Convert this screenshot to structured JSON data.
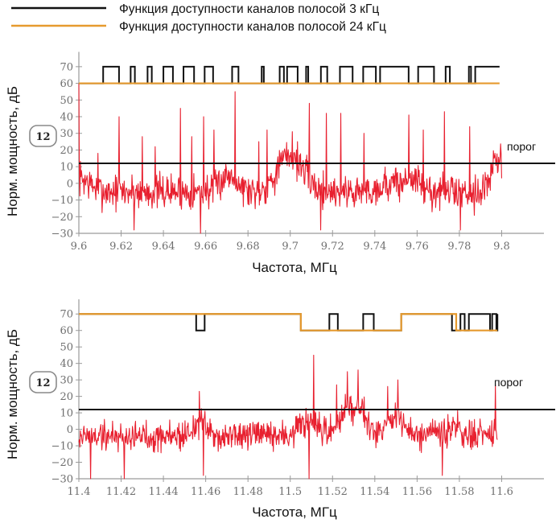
{
  "colors": {
    "noise": "#e8202f",
    "avail3": "#111111",
    "avail24": "#e69a2e",
    "threshold": "#111111",
    "axis": "#9a9a9a",
    "badge_border": "#8a8a8a"
  },
  "legend": [
    {
      "label": "Функция доступности каналов полосой 3 кГц",
      "color": "#111111"
    },
    {
      "label": "Функция доступности каналов полосой 24 кГц",
      "color": "#e69a2e"
    }
  ],
  "chart_data": [
    {
      "type": "line",
      "xlabel": "Частота, МГц",
      "ylabel": "Норм. мощность, дБ",
      "xlim": [
        9.6,
        9.82
      ],
      "ylim": [
        -30,
        75
      ],
      "xticks": [
        9.6,
        9.62,
        9.64,
        9.66,
        9.68,
        9.7,
        9.72,
        9.74,
        9.76,
        9.78,
        9.8
      ],
      "xtick_labels": [
        "9.6",
        "9.62",
        "9.64",
        "9.66",
        "9.68",
        "9.7",
        "9.72",
        "9.74",
        "9.76",
        "9.78",
        "9.8"
      ],
      "yticks": [
        -30,
        -20,
        -10,
        0,
        10,
        20,
        30,
        40,
        50,
        60,
        70
      ],
      "ytick_labels": [
        "−30",
        "−20",
        "−10",
        "0",
        "10",
        "20",
        "30",
        "40",
        "50",
        "60",
        "70"
      ],
      "threshold": {
        "value": 12,
        "badge": "12",
        "label": "порог"
      },
      "noise": {
        "name": "Норм. мощность",
        "x_range": [
          9.6,
          9.8
        ],
        "baseline": -5,
        "std": 8,
        "seed": 7,
        "humps": [
          [
            9.6,
            0.005,
            8
          ],
          [
            9.671,
            0.004,
            10
          ],
          [
            9.7,
            0.006,
            22
          ],
          [
            9.748,
            0.005,
            5
          ],
          [
            9.758,
            0.003,
            8
          ],
          [
            9.798,
            0.003,
            18
          ]
        ],
        "peaks": [
          [
            9.6,
            60
          ],
          [
            9.609,
            18
          ],
          [
            9.619,
            40
          ],
          [
            9.63,
            28
          ],
          [
            9.636,
            22
          ],
          [
            9.648,
            45
          ],
          [
            9.6535,
            28
          ],
          [
            9.659,
            40
          ],
          [
            9.664,
            32
          ],
          [
            9.674,
            55
          ],
          [
            9.685,
            25
          ],
          [
            9.689,
            32
          ],
          [
            9.701,
            31
          ],
          [
            9.709,
            48
          ],
          [
            9.717,
            42
          ],
          [
            9.724,
            42
          ],
          [
            9.735,
            30
          ],
          [
            9.756,
            41
          ],
          [
            9.763,
            32
          ],
          [
            9.773,
            43
          ],
          [
            9.785,
            34
          ]
        ],
        "dips": [
          [
            9.626,
            -28
          ],
          [
            9.6575,
            -33
          ],
          [
            9.7145,
            -28
          ],
          [
            9.7805,
            -28
          ]
        ]
      },
      "availability_3khz": {
        "name": "Функция доступности каналов полосой 3 кГц",
        "steps": [
          [
            9.6,
            60
          ],
          [
            9.6115,
            70
          ],
          [
            9.619,
            60
          ],
          [
            9.6245,
            70
          ],
          [
            9.6265,
            60
          ],
          [
            9.6325,
            70
          ],
          [
            9.6345,
            60
          ],
          [
            9.64,
            70
          ],
          [
            9.6445,
            60
          ],
          [
            9.6495,
            70
          ],
          [
            9.6545,
            60
          ],
          [
            9.6595,
            70
          ],
          [
            9.6635,
            60
          ],
          [
            9.6725,
            70
          ],
          [
            9.6755,
            60
          ],
          [
            9.6865,
            70
          ],
          [
            9.6875,
            60
          ],
          [
            9.695,
            70
          ],
          [
            9.697,
            60
          ],
          [
            9.6985,
            70
          ],
          [
            9.7035,
            60
          ],
          [
            9.7075,
            70
          ],
          [
            9.7085,
            60
          ],
          [
            9.7145,
            70
          ],
          [
            9.7175,
            60
          ],
          [
            9.7235,
            70
          ],
          [
            9.7295,
            60
          ],
          [
            9.7345,
            70
          ],
          [
            9.7405,
            60
          ],
          [
            9.7425,
            70
          ],
          [
            9.756,
            60
          ],
          [
            9.7605,
            70
          ],
          [
            9.768,
            60
          ],
          [
            9.7735,
            70
          ],
          [
            9.7755,
            60
          ],
          [
            9.7845,
            70
          ],
          [
            9.7855,
            60
          ],
          [
            9.7875,
            70
          ],
          [
            9.799,
            70
          ]
        ]
      },
      "availability_24khz": {
        "name": "Функция доступности каналов полосой 24 кГц",
        "steps": [
          [
            9.6,
            60
          ],
          [
            9.799,
            60
          ]
        ]
      }
    },
    {
      "type": "line",
      "xlabel": "Частота, МГц",
      "ylabel": "Норм. мощность, дБ",
      "xlim": [
        11.4,
        11.62
      ],
      "ylim": [
        -30,
        75
      ],
      "xticks": [
        11.4,
        11.42,
        11.44,
        11.46,
        11.48,
        11.5,
        11.52,
        11.54,
        11.56,
        11.58,
        11.6
      ],
      "xtick_labels": [
        "11.4",
        "11.42",
        "11.44",
        "11.46",
        "11.48",
        "11.5",
        "11.52",
        "11.54",
        "11.56",
        "11.58",
        "11.6"
      ],
      "yticks": [
        -30,
        -20,
        -10,
        0,
        10,
        20,
        30,
        40,
        50,
        60,
        70
      ],
      "ytick_labels": [
        "−30",
        "−20",
        "−10",
        "0",
        "10",
        "20",
        "30",
        "40",
        "50",
        "60",
        "70"
      ],
      "threshold": {
        "value": 12,
        "badge": "12",
        "label": "порог"
      },
      "noise": {
        "name": "Норм. мощность",
        "x_range": [
          11.4,
          11.598
        ],
        "baseline": -4,
        "std": 7,
        "seed": 19,
        "humps": [
          [
            11.457,
            0.003,
            8
          ],
          [
            11.508,
            0.004,
            8
          ],
          [
            11.527,
            0.004,
            16
          ],
          [
            11.534,
            0.003,
            14
          ],
          [
            11.549,
            0.004,
            12
          ],
          [
            11.577,
            0.003,
            5
          ]
        ],
        "peaks": [
          [
            11.457,
            23
          ],
          [
            11.511,
            45
          ],
          [
            11.522,
            27
          ],
          [
            11.527,
            35
          ],
          [
            11.532,
            36
          ],
          [
            11.546,
            26
          ],
          [
            11.551,
            30
          ],
          [
            11.597,
            27
          ]
        ],
        "dips": [
          [
            11.4055,
            -30
          ],
          [
            11.4215,
            -30
          ],
          [
            11.459,
            -28
          ],
          [
            11.509,
            -30
          ],
          [
            11.572,
            -28
          ]
        ]
      },
      "availability_3khz": {
        "name": "Функция доступности каналов полосой 3 кГц",
        "steps": [
          [
            11.4,
            70
          ],
          [
            11.4555,
            60
          ],
          [
            11.4595,
            70
          ],
          [
            11.505,
            60
          ],
          [
            11.5185,
            70
          ],
          [
            11.5225,
            60
          ],
          [
            11.5345,
            70
          ],
          [
            11.5395,
            60
          ],
          [
            11.5525,
            70
          ],
          [
            11.5765,
            60
          ],
          [
            11.5805,
            70
          ],
          [
            11.5825,
            60
          ],
          [
            11.5845,
            70
          ],
          [
            11.5945,
            60
          ],
          [
            11.5955,
            70
          ],
          [
            11.5975,
            60
          ],
          [
            11.598,
            70
          ]
        ]
      },
      "availability_24khz": {
        "name": "Функция доступности каналов полосой 24 кГц",
        "steps": [
          [
            11.4,
            70
          ],
          [
            11.505,
            60
          ],
          [
            11.5525,
            70
          ],
          [
            11.5785,
            60
          ],
          [
            11.598,
            60
          ]
        ]
      }
    }
  ]
}
